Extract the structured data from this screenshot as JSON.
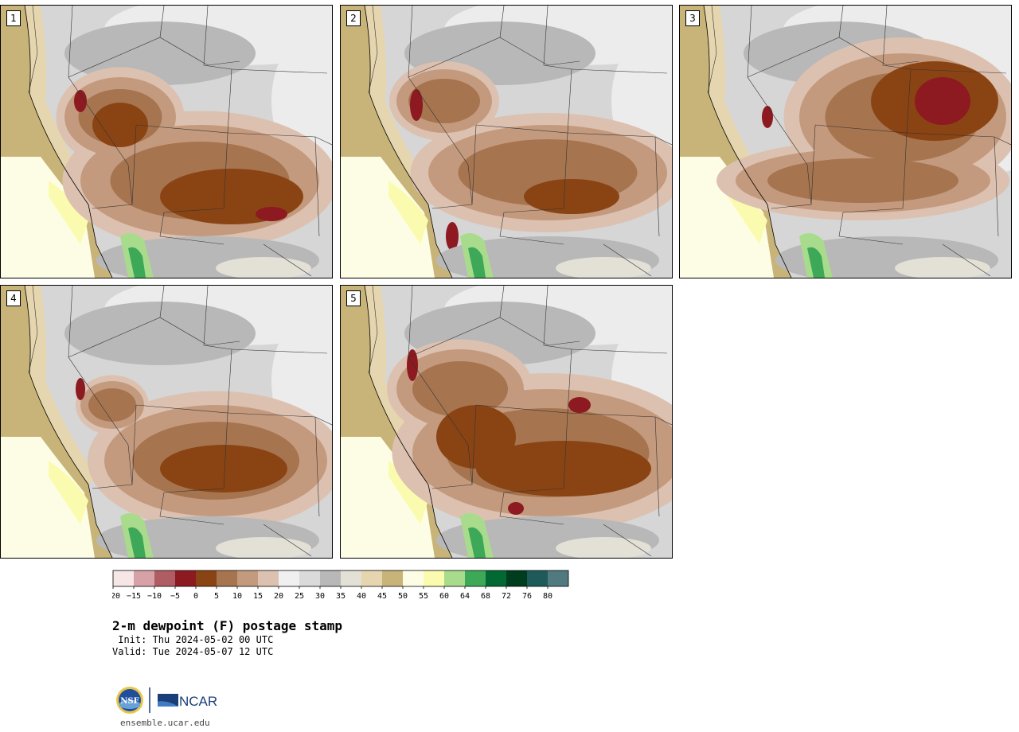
{
  "title": "2-m dewpoint (F) postage stamp",
  "init_line": " Init: Thu 2024-05-02 00 UTC",
  "valid_line": "Valid: Tue 2024-05-07 12 UTC",
  "site": "ensemble.ucar.edu",
  "logos": {
    "nsf": "NSF",
    "ncar": "NCAR"
  },
  "panels": [
    "1",
    "2",
    "3",
    "4",
    "5"
  ],
  "colorbar": {
    "ticks": [
      "−20",
      "−15",
      "−10",
      "−5",
      "0",
      "5",
      "10",
      "15",
      "20",
      "25",
      "30",
      "35",
      "40",
      "45",
      "50",
      "55",
      "60",
      "64",
      "68",
      "72",
      "76",
      "80"
    ],
    "colors": [
      "#f7e6e6",
      "#d6a2a7",
      "#b05c63",
      "#8c1a20",
      "#8a4414",
      "#a67550",
      "#c49a7e",
      "#dcc1b0",
      "#f0f0f0",
      "#dadada",
      "#b8b8b8",
      "#e3e0d6",
      "#e6d6b0",
      "#c8b478",
      "#fdfde6",
      "#fbfbb0",
      "#a8dc8c",
      "#3ca858",
      "#006a32",
      "#003c1e",
      "#1e5a5a",
      "#507a80"
    ]
  }
}
